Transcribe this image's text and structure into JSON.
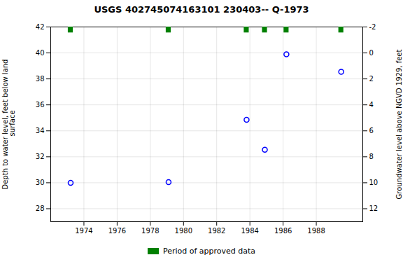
{
  "chart_data": {
    "type": "scatter",
    "title": "USGS 402745074163101 230403-- Q-1973",
    "ylabel": "Depth to water level, feet below land\n surface",
    "y2label": "Groundwater level above NGVD 1929, feet",
    "x": [
      1973.2,
      1979.1,
      1983.8,
      1984.9,
      1986.2,
      1989.5
    ],
    "values": [
      30.0,
      30.05,
      34.85,
      32.55,
      39.9,
      38.55
    ],
    "color": "blue",
    "marker": "circle",
    "xlim": [
      1972.0,
      1990.8
    ],
    "xticks": [
      1974,
      1976,
      1978,
      1980,
      1982,
      1984,
      1986,
      1988
    ],
    "ylim": [
      27,
      42
    ],
    "yticks": [
      28,
      30,
      32,
      34,
      36,
      38,
      40,
      42
    ],
    "y2lim": [
      13,
      -2
    ],
    "y2ticks": [
      12,
      10,
      8,
      6,
      4,
      2,
      0,
      -2
    ],
    "grid": true,
    "legend": "bottom",
    "approved_periods": {
      "name": "Period of approved data",
      "color": "#008000",
      "x": [
        1973.2,
        1979.1,
        1983.8,
        1984.9,
        1986.2,
        1989.5
      ]
    }
  }
}
